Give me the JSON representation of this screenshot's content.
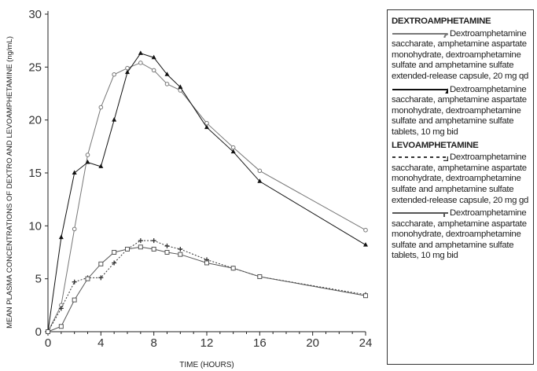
{
  "chart_data": {
    "type": "line",
    "xlabel": "TIME (HOURS)",
    "ylabel": "MEAN PLASMA CONCENTRATIONS OF DEXTRO AND LEVOAMPHETAMINE (ng/mL)",
    "xlim": [
      0,
      24
    ],
    "ylim": [
      0,
      30
    ],
    "xticks": [
      0,
      4,
      8,
      12,
      16,
      20,
      24
    ],
    "yticks": [
      0,
      5,
      10,
      15,
      20,
      25,
      30
    ],
    "grid": false,
    "legend_position": "right",
    "x": [
      0,
      1,
      2,
      3,
      4,
      5,
      6,
      7,
      8,
      9,
      10,
      12,
      14,
      16,
      24
    ],
    "groups": [
      {
        "title": "DEXTROAMPHETAMINE",
        "series": [
          0,
          1
        ]
      },
      {
        "title": "LEVOAMPHETAMINE",
        "series": [
          2,
          3
        ]
      }
    ],
    "series": [
      {
        "name": "Dextroamphetamine saccharate, amphetamine aspartate monohydrate, dextroamphetamine sulfate and amphetamine sulfate extended-release capsule, 20 mg qd",
        "marker": "circle",
        "line": "solid",
        "color": "#777777",
        "values": [
          0,
          2.5,
          9.7,
          16.7,
          21.2,
          24.3,
          24.9,
          25.4,
          24.7,
          23.4,
          22.8,
          19.7,
          17.4,
          15.2,
          9.6
        ]
      },
      {
        "name": "Dextroamphetamine saccharate, amphetamine aspartate monohydrate, dextroamphetamine sulfate and amphetamine sulfate tablets, 10 mg bid",
        "marker": "triangle",
        "line": "solid",
        "color": "#111111",
        "values": [
          0,
          8.9,
          15.0,
          16.0,
          15.6,
          20.0,
          24.5,
          26.3,
          25.9,
          24.3,
          23.1,
          19.3,
          17.0,
          14.2,
          8.2
        ]
      },
      {
        "name": "Dextroamphetamine saccharate, amphetamine aspartate monohydrate, dextroamphetamine sulfate and amphetamine sulfate extended-release capsule, 20 mg gd",
        "marker": "plus",
        "line": "dotted",
        "color": "#333333",
        "values": [
          0,
          2.2,
          4.7,
          5.1,
          5.1,
          6.5,
          7.8,
          8.6,
          8.6,
          8.1,
          7.8,
          6.8,
          6.0,
          5.2,
          3.5
        ]
      },
      {
        "name": "Dextroamphetamine saccharate, amphetamine aspartate monohydrate, dextroamphetamine sulfate and amphetamine sulfate tablets, 10 mg bid",
        "marker": "square",
        "line": "solid",
        "color": "#555555",
        "values": [
          0,
          0.5,
          3.0,
          5.0,
          6.4,
          7.5,
          7.8,
          8.0,
          7.8,
          7.5,
          7.3,
          6.5,
          6.0,
          5.2,
          3.4
        ]
      }
    ]
  }
}
